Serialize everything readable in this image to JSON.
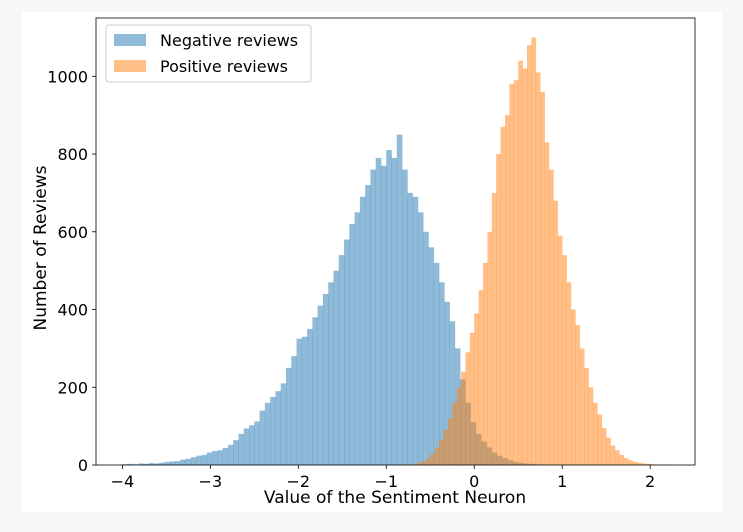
{
  "chart_data": {
    "type": "histogram",
    "title": "",
    "xlabel": "Value of the Sentiment Neuron",
    "ylabel": "Number of Reviews",
    "xlim": [
      -4.3,
      2.51
    ],
    "ylim": [
      0,
      1150
    ],
    "xticks": [
      -4,
      -3,
      -2,
      -1,
      0,
      1,
      2
    ],
    "yticks": [
      0,
      200,
      400,
      600,
      800,
      1000
    ],
    "grid": false,
    "legend_position": "top-left",
    "series": [
      {
        "name": "Negative reviews",
        "color": "#1f77b4",
        "alpha": 0.5,
        "bin_start": -4.0,
        "bin_width": 0.06,
        "values": [
          2,
          3,
          2,
          4,
          3,
          5,
          4,
          6,
          8,
          9,
          10,
          14,
          16,
          20,
          24,
          26,
          32,
          36,
          38,
          44,
          52,
          64,
          80,
          94,
          102,
          112,
          140,
          160,
          175,
          190,
          210,
          250,
          280,
          325,
          330,
          350,
          380,
          410,
          440,
          470,
          500,
          540,
          580,
          620,
          650,
          690,
          720,
          760,
          790,
          770,
          810,
          790,
          850,
          760,
          700,
          690,
          650,
          600,
          560,
          520,
          470,
          420,
          370,
          300,
          220,
          160,
          110,
          80,
          60,
          45,
          32,
          24,
          18,
          12,
          8,
          6,
          4,
          3,
          2,
          1
        ]
      },
      {
        "name": "Positive reviews",
        "color": "#ff7f0e",
        "alpha": 0.5,
        "bin_start": -0.7,
        "bin_width": 0.05,
        "values": [
          3,
          6,
          10,
          16,
          28,
          45,
          65,
          90,
          120,
          160,
          200,
          240,
          290,
          340,
          390,
          450,
          520,
          600,
          700,
          800,
          870,
          900,
          980,
          990,
          1040,
          1020,
          1080,
          1100,
          1010,
          960,
          830,
          760,
          680,
          590,
          540,
          470,
          400,
          360,
          300,
          250,
          200,
          160,
          130,
          95,
          70,
          50,
          38,
          26,
          18,
          12,
          8,
          6,
          4,
          3,
          2,
          1,
          1,
          1
        ]
      }
    ]
  }
}
